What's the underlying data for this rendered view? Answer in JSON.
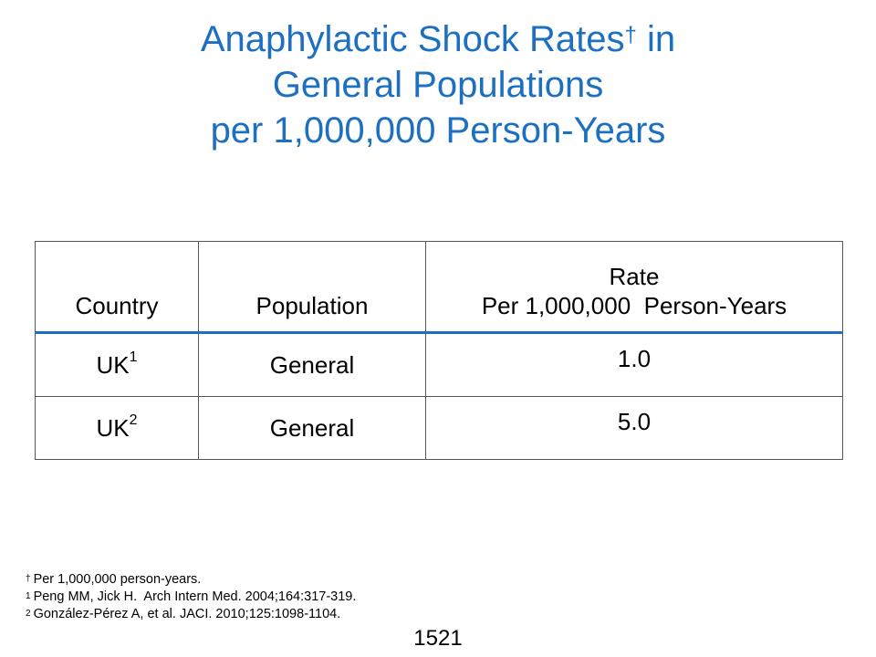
{
  "title": {
    "line1": "Anaphylactic Shock Rates",
    "line1_mark": "†",
    "line1_suffix": " in",
    "line2": "General Populations",
    "line3": "per 1,000,000 Person-Years"
  },
  "table": {
    "headers": {
      "country": "Country",
      "population": "Population",
      "rate_line1": "Rate",
      "rate_line2": "Per 1,000,000  Person-Years"
    },
    "rows": [
      {
        "country": "UK",
        "ref": "1",
        "population": "General",
        "rate": "1.0"
      },
      {
        "country": "UK",
        "ref": "2",
        "population": "General",
        "rate": "5.0"
      }
    ]
  },
  "footnotes": [
    {
      "mark": "†",
      "text": "Per 1,000,000 person-years."
    },
    {
      "mark": "1",
      "text": "Peng MM, Jick H.  Arch Intern Med. 2004;164:317-319."
    },
    {
      "mark": "2",
      "text": "González-Pérez A, et al. JACI. 2010;125:1098-1104."
    }
  ],
  "page_number": "1521"
}
